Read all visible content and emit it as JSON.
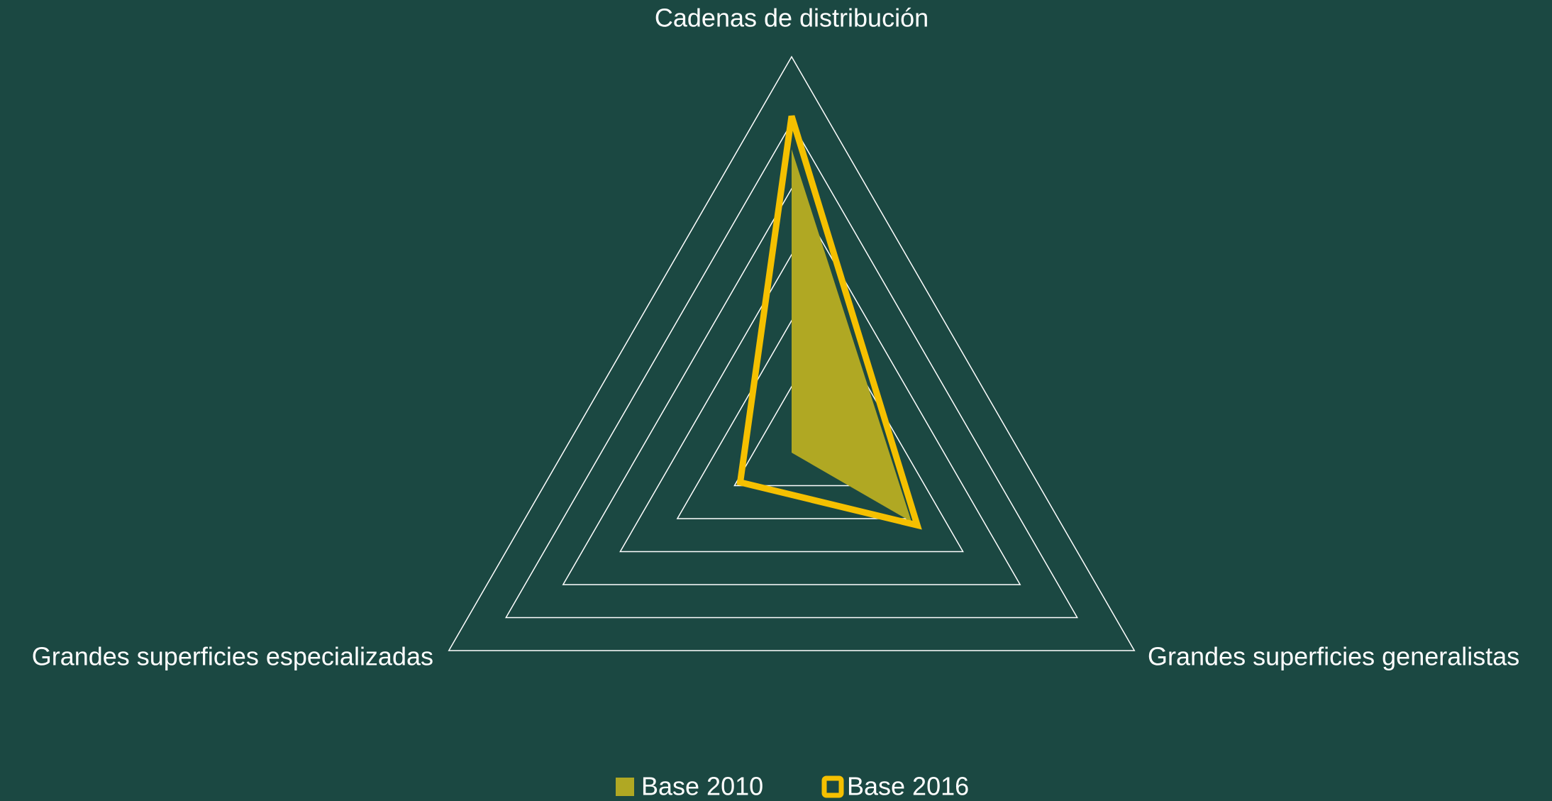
{
  "chart_data": {
    "type": "radar",
    "categories": [
      "Cadenas de distribución",
      "Grandes superficies generalistas",
      "Grandes superficies especializadas"
    ],
    "series": [
      {
        "name": "Base 2010",
        "color": "#b0a823",
        "fill": true,
        "values": [
          4.6,
          2.1,
          0
        ]
      },
      {
        "name": "Base 2016",
        "color": "#f5c000",
        "fill": false,
        "values": [
          5.1,
          2.2,
          0.9
        ]
      }
    ],
    "ylim": [
      0,
      6
    ],
    "yticks": [
      1,
      2,
      3,
      4,
      5,
      6
    ],
    "grid": true,
    "legend": "bottom"
  }
}
